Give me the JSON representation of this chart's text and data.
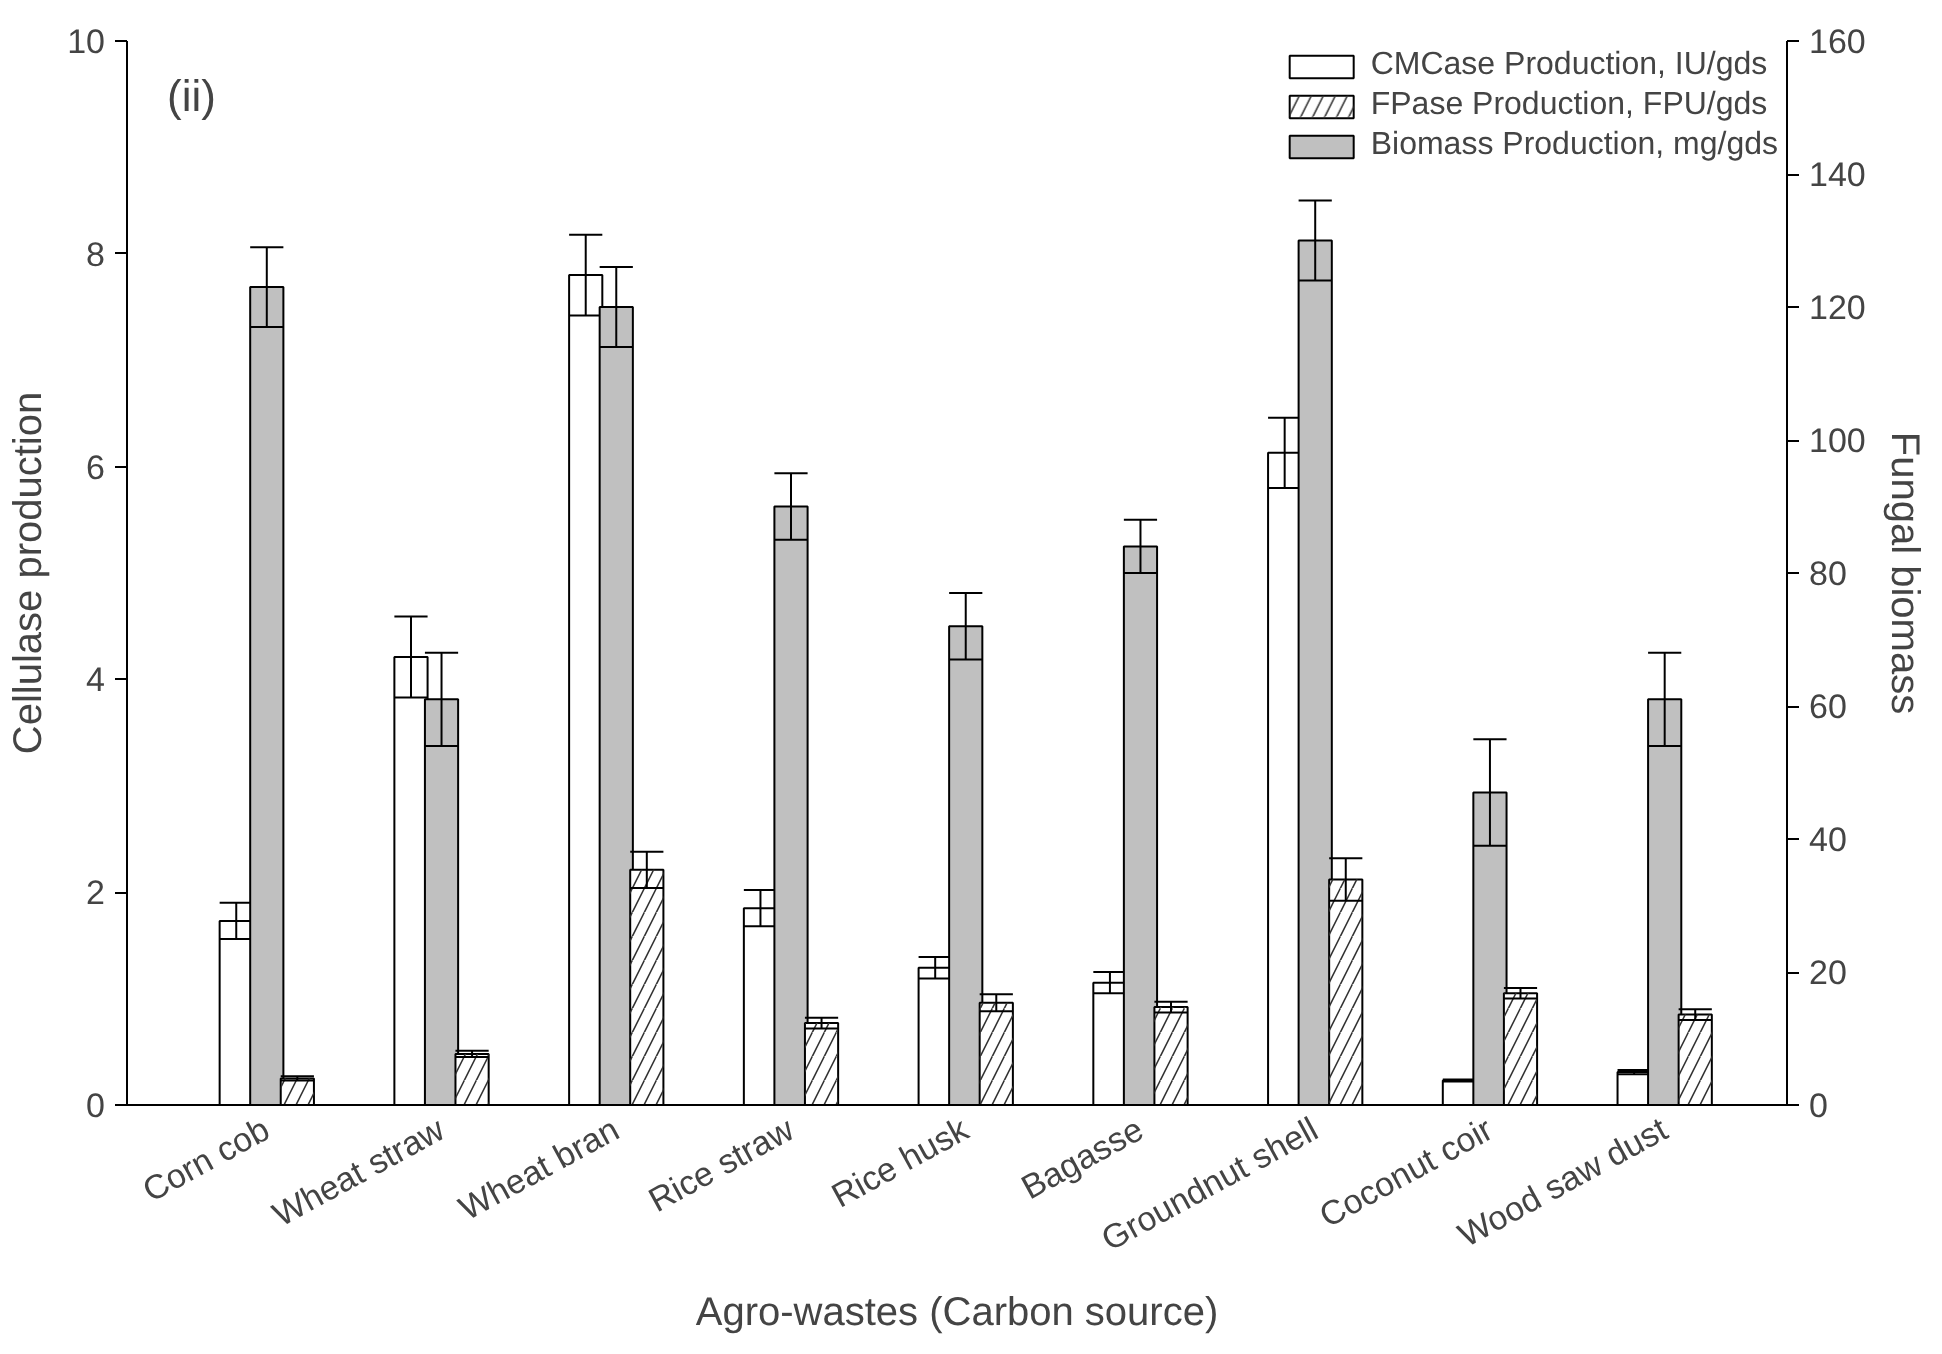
{
  "chart_data": {
    "type": "bar",
    "xlabel": "Agro-wastes (Carbon source)",
    "ylabel": "Cellulase production",
    "y2label": "Fungal biomass",
    "categories": [
      "Corn cob",
      "Wheat straw",
      "Wheat bran",
      "Rice straw",
      "Rice husk",
      "Bagasse",
      "Groundnut shell",
      "Coconut coir",
      "Wood saw dust"
    ],
    "series": [
      {
        "name": "CMCase Production, IU/gds",
        "color": "#ffffff",
        "values": [
          1.73,
          4.21,
          7.8,
          1.85,
          1.29,
          1.15,
          6.13,
          0.23,
          0.31
        ],
        "errors": [
          0.17,
          0.38,
          0.38,
          0.17,
          0.1,
          0.1,
          0.33,
          0.01,
          0.02
        ]
      },
      {
        "name": "Biomass Production, mg/gds",
        "color": "#c0c0c0",
        "axis": "y2",
        "values": [
          123,
          61,
          120,
          90,
          72,
          84,
          130,
          47,
          61
        ],
        "errors": [
          6,
          7,
          6,
          5,
          5,
          4,
          6,
          8,
          7
        ]
      },
      {
        "name": "FPase Production, FPU/gds",
        "color": "#ffffff",
        "values": [
          0.25,
          0.48,
          2.21,
          0.77,
          0.96,
          0.92,
          2.12,
          1.05,
          0.85
        ],
        "errors": [
          0.02,
          0.03,
          0.17,
          0.05,
          0.08,
          0.05,
          0.2,
          0.05,
          0.05
        ]
      }
    ],
    "ylim": [
      0,
      10
    ],
    "yticks": [
      0,
      2,
      4,
      6,
      8,
      10
    ],
    "y2lim": [
      0,
      160
    ],
    "y2ticks": [
      0,
      20,
      40,
      60,
      80,
      100,
      120,
      140,
      160
    ],
    "annotations": [
      "(ii)"
    ],
    "legend": "top right",
    "grid": false
  }
}
